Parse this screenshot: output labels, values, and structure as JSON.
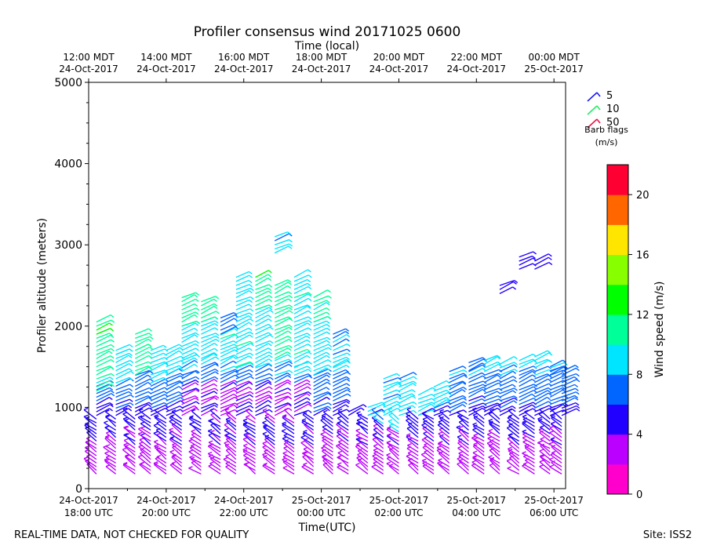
{
  "chart_data": {
    "type": "wind-barb-profile",
    "title": "Profiler consensus wind 20171025 0600",
    "top_axis_title": "Time (local)",
    "top_ticks": [
      {
        "line1": "12:00 MDT",
        "line2": "24-Oct-2017"
      },
      {
        "line1": "14:00 MDT",
        "line2": "24-Oct-2017"
      },
      {
        "line1": "16:00 MDT",
        "line2": "24-Oct-2017"
      },
      {
        "line1": "18:00 MDT",
        "line2": "24-Oct-2017"
      },
      {
        "line1": "20:00 MDT",
        "line2": "24-Oct-2017"
      },
      {
        "line1": "22:00 MDT",
        "line2": "24-Oct-2017"
      },
      {
        "line1": "00:00 MDT",
        "line2": "25-Oct-2017"
      }
    ],
    "bottom_ticks": [
      {
        "line1": "24-Oct-2017",
        "line2": "18:00 UTC"
      },
      {
        "line1": "24-Oct-2017",
        "line2": "20:00 UTC"
      },
      {
        "line1": "24-Oct-2017",
        "line2": "22:00 UTC"
      },
      {
        "line1": "25-Oct-2017",
        "line2": "00:00 UTC"
      },
      {
        "line1": "25-Oct-2017",
        "line2": "02:00 UTC"
      },
      {
        "line1": "25-Oct-2017",
        "line2": "04:00 UTC"
      },
      {
        "line1": "25-Oct-2017",
        "line2": "06:00 UTC"
      }
    ],
    "xlabel": "Time(UTC)",
    "ylabel": "Profiler altitude (meters)",
    "xlim_hours_utc": [
      18,
      30.3
    ],
    "ylim": [
      0,
      5000
    ],
    "yticks": [
      0,
      1000,
      2000,
      3000,
      4000,
      5000
    ],
    "colorbar": {
      "label": "Wind speed (m/s)",
      "min": 0,
      "max": 22,
      "ticks": [
        0,
        4,
        8,
        12,
        16,
        20
      ],
      "colors": [
        "#ff00cc",
        "#bb00ff",
        "#2200ff",
        "#0066ff",
        "#00e5ff",
        "#00ff99",
        "#00ff00",
        "#88ff00",
        "#ffe600",
        "#ff6600",
        "#ff0033"
      ]
    },
    "barb_legend": {
      "items": [
        {
          "label": "5",
          "color": "#1a1aee"
        },
        {
          "label": "10",
          "color": "#22ee66"
        },
        {
          "label": "50",
          "color": "#ee1144"
        }
      ],
      "title_line1": "Barb flags",
      "title_line2": "(m/s)"
    },
    "profiles": [
      {
        "t": 18.2,
        "top": 1300,
        "hi": [
          [
            1200,
            1900,
            10.5
          ],
          [
            1900,
            2050,
            12
          ]
        ]
      },
      {
        "t": 18.7,
        "top": 1300,
        "hi": [
          [
            1300,
            1650,
            9
          ],
          [
            1650,
            1700,
            8.5
          ]
        ]
      },
      {
        "t": 19.2,
        "top": 1400,
        "hi": [
          [
            1400,
            1700,
            10.5
          ],
          [
            1700,
            1900,
            11
          ]
        ]
      },
      {
        "t": 19.6,
        "top": 1300,
        "hi": [
          [
            1300,
            1700,
            9
          ]
        ]
      },
      {
        "t": 20.0,
        "top": 1400,
        "hi": [
          [
            1400,
            1700,
            8.5
          ]
        ]
      },
      {
        "t": 20.4,
        "top": 1600,
        "hi": [
          [
            1600,
            2000,
            9
          ],
          [
            2000,
            2350,
            11.5
          ]
        ]
      },
      {
        "t": 20.9,
        "top": 1600,
        "hi": [
          [
            1600,
            2050,
            9
          ],
          [
            2050,
            2300,
            10.5
          ]
        ]
      },
      {
        "t": 21.4,
        "top": 1900,
        "hi": [
          [
            1900,
            2100,
            7
          ]
        ]
      },
      {
        "t": 21.8,
        "top": 1500,
        "hi": [
          [
            1500,
            2600,
            9.5
          ]
        ]
      },
      {
        "t": 22.3,
        "top": 1500,
        "hi": [
          [
            1500,
            2200,
            9
          ],
          [
            2200,
            2600,
            11.5
          ]
        ]
      },
      {
        "t": 22.8,
        "top": 1600,
        "hi": [
          [
            1600,
            2500,
            11
          ],
          [
            2900,
            3100,
            8.5
          ]
        ]
      },
      {
        "t": 23.3,
        "top": 1500,
        "hi": [
          [
            1500,
            2600,
            9.5
          ]
        ]
      },
      {
        "t": 23.8,
        "top": 1400,
        "hi": [
          [
            1400,
            2050,
            9
          ],
          [
            2050,
            2350,
            10.5
          ]
        ]
      },
      {
        "t": 24.3,
        "top": 1500,
        "hi": [
          [
            1500,
            1900,
            8
          ]
        ]
      },
      {
        "t": 24.7,
        "top": 950,
        "hi": []
      },
      {
        "t": 25.2,
        "top": 900,
        "hi": [
          [
            900,
            1000,
            8.5
          ]
        ]
      },
      {
        "t": 25.6,
        "top": 800,
        "hi": [
          [
            800,
            1350,
            8.5
          ]
        ]
      },
      {
        "t": 26.0,
        "top": 700,
        "hi": [
          [
            700,
            1350,
            8.5
          ]
        ]
      },
      {
        "t": 26.5,
        "top": 900,
        "hi": [
          [
            900,
            1150,
            8.5
          ]
        ]
      },
      {
        "t": 26.9,
        "top": 1000,
        "hi": [
          [
            1000,
            1250,
            8.5
          ]
        ]
      },
      {
        "t": 27.3,
        "top": 1450,
        "hi": []
      },
      {
        "t": 27.8,
        "top": 1450,
        "hi": [
          [
            1450,
            1550,
            8
          ]
        ]
      },
      {
        "t": 28.2,
        "top": 1600,
        "hi": []
      },
      {
        "t": 28.6,
        "top": 1550,
        "hi": [
          [
            2400,
            2500,
            5
          ]
        ]
      },
      {
        "t": 29.1,
        "top": 1600,
        "hi": [
          [
            2700,
            2850,
            5.5
          ]
        ]
      },
      {
        "t": 29.5,
        "top": 1650,
        "hi": [
          [
            2700,
            2800,
            5
          ]
        ]
      },
      {
        "t": 29.9,
        "top": 1500,
        "hi": [
          [
            1400,
            1500,
            8
          ]
        ]
      },
      {
        "t": 30.2,
        "top": 1450,
        "hi": []
      }
    ]
  },
  "footer": {
    "left_note": "REAL-TIME DATA, NOT CHECKED FOR QUALITY",
    "site": "Site: ISS2"
  }
}
